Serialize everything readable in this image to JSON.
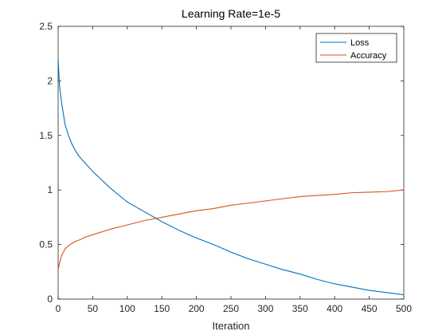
{
  "chart_data": {
    "type": "line",
    "title": "Learning Rate=1e-5",
    "xlabel": "Iteration",
    "ylabel": "",
    "xlim": [
      0,
      500
    ],
    "ylim": [
      0,
      2.5
    ],
    "xticks": [
      0,
      50,
      100,
      150,
      200,
      250,
      300,
      350,
      400,
      450,
      500
    ],
    "yticks": [
      0,
      0.5,
      1,
      1.5,
      2,
      2.5
    ],
    "xtick_labels": [
      "0",
      "50",
      "100",
      "150",
      "200",
      "250",
      "300",
      "350",
      "400",
      "450",
      "500"
    ],
    "ytick_labels": [
      "0",
      "0.5",
      "1",
      "1.5",
      "2",
      "2.5"
    ],
    "grid": false,
    "legend_position": "top-right",
    "series": [
      {
        "name": "Loss",
        "color": "#0072BD",
        "x": [
          0,
          2,
          5,
          10,
          15,
          20,
          25,
          30,
          40,
          50,
          60,
          75,
          100,
          125,
          150,
          175,
          200,
          225,
          250,
          275,
          300,
          325,
          350,
          375,
          400,
          425,
          450,
          475,
          500
        ],
        "y": [
          2.2,
          1.95,
          1.8,
          1.6,
          1.5,
          1.42,
          1.36,
          1.31,
          1.24,
          1.17,
          1.11,
          1.02,
          0.89,
          0.8,
          0.71,
          0.63,
          0.56,
          0.5,
          0.43,
          0.37,
          0.32,
          0.27,
          0.23,
          0.18,
          0.14,
          0.11,
          0.08,
          0.06,
          0.04
        ]
      },
      {
        "name": "Accuracy",
        "color": "#D95319",
        "x": [
          0,
          2,
          5,
          10,
          15,
          20,
          25,
          30,
          40,
          50,
          60,
          75,
          100,
          125,
          150,
          175,
          200,
          225,
          250,
          275,
          300,
          325,
          350,
          375,
          400,
          425,
          450,
          475,
          500
        ],
        "y": [
          0.27,
          0.33,
          0.4,
          0.46,
          0.49,
          0.51,
          0.53,
          0.54,
          0.57,
          0.59,
          0.61,
          0.64,
          0.68,
          0.72,
          0.75,
          0.78,
          0.81,
          0.83,
          0.86,
          0.88,
          0.9,
          0.92,
          0.94,
          0.95,
          0.96,
          0.975,
          0.98,
          0.985,
          1.0
        ]
      }
    ]
  }
}
